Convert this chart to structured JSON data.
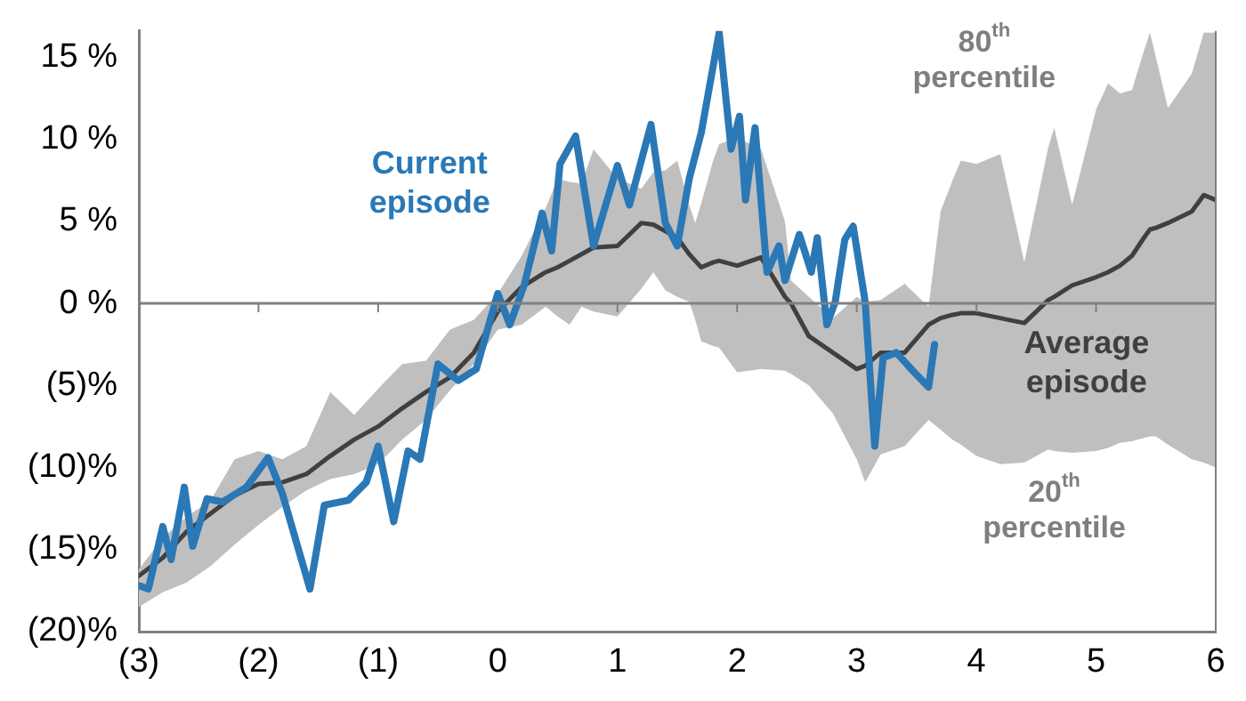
{
  "chart_data": {
    "type": "line",
    "xlim": [
      -3,
      6
    ],
    "xticks": [
      {
        "value": -3,
        "label": "(3)"
      },
      {
        "value": -2,
        "label": "(2)"
      },
      {
        "value": -1,
        "label": "(1)"
      },
      0,
      1,
      2,
      3,
      4,
      5,
      6
    ],
    "ylim": [
      -20,
      16.6
    ],
    "yticks": [
      {
        "value": -20,
        "label": "(20)%"
      },
      {
        "value": -15,
        "label": "(15)%"
      },
      {
        "value": -10,
        "label": "(10)%"
      },
      {
        "value": -5,
        "label": "(5)%"
      },
      {
        "value": 0,
        "label": "0 %"
      },
      {
        "value": 5,
        "label": "5 %"
      },
      {
        "value": 10,
        "label": "10 %"
      },
      {
        "value": 15,
        "label": "15 %"
      }
    ],
    "grid": false,
    "legend": false,
    "marker": "none",
    "line_style": "solid",
    "ref_lines": [
      {
        "axis": "y",
        "value": 0,
        "color": "#808080"
      }
    ],
    "annotations": [
      "80$^{th}$ percentile",
      "20$^{th}$ percentile"
    ],
    "series": [
      {
        "name": "Average episode",
        "color": "#404040",
        "x": [
          -3,
          -2.8,
          -2.6,
          -2.4,
          -2.2,
          -2,
          -1.8,
          -1.6,
          -1.4,
          -1.2,
          -1,
          -0.8,
          -0.6,
          -0.4,
          -0.2,
          0,
          0.2,
          0.4,
          0.5,
          0.6,
          0.7,
          0.8,
          1,
          1.2,
          1.3,
          1.4,
          1.5,
          1.6,
          1.65,
          1.7,
          1.8,
          1.85,
          2,
          2.2,
          2.4,
          2.45,
          2.6,
          2.8,
          3,
          3.07,
          3.2,
          3.4,
          3.6,
          3.7,
          3.8,
          3.87,
          4,
          4.2,
          4.4,
          4.6,
          4.65,
          4.8,
          5,
          5.1,
          5.2,
          5.3,
          5.4,
          5.45,
          5.5,
          5.6,
          5.8,
          5.9,
          6
        ],
        "values": [
          -16.6,
          -15.5,
          -13.9,
          -12.8,
          -11.7,
          -11.0,
          -10.9,
          -10.4,
          -9.3,
          -8.3,
          -7.5,
          -6.4,
          -5.4,
          -4.5,
          -3.0,
          -0.5,
          1.0,
          1.9,
          2.2,
          2.6,
          3.0,
          3.4,
          3.5,
          4.9,
          4.8,
          4.4,
          4.0,
          3.0,
          2.6,
          2.2,
          2.5,
          2.6,
          2.3,
          2.8,
          0.4,
          0.0,
          -2.0,
          -3.0,
          -4.0,
          -3.8,
          -3.0,
          -3.0,
          -1.3,
          -0.9,
          -0.7,
          -0.6,
          -0.6,
          -0.9,
          -1.2,
          0.2,
          0.4,
          1.1,
          1.6,
          1.9,
          2.3,
          2.9,
          4.0,
          4.5,
          4.6,
          4.9,
          5.6,
          6.6,
          6.3
        ],
        "lower": [
          -18.5,
          -17.6,
          -17.0,
          -16.0,
          -14.7,
          -13.5,
          -12.4,
          -11.4,
          -10.7,
          -10.4,
          -9.8,
          -8.3,
          -7.1,
          -5.3,
          -3.7,
          -1.6,
          -1.3,
          -0.2,
          -0.8,
          -1.3,
          -0.2,
          -0.5,
          -0.8,
          0.9,
          1.9,
          0.8,
          0.4,
          0.1,
          -1.0,
          -2.3,
          -2.6,
          -2.7,
          -4.2,
          -4.0,
          -4.1,
          -4.3,
          -5.0,
          -6.7,
          -9.5,
          -10.9,
          -9.2,
          -8.7,
          -7.1,
          -7.7,
          -8.3,
          -8.6,
          -9.3,
          -9.8,
          -9.7,
          -8.9,
          -9.0,
          -9.1,
          -9.0,
          -8.8,
          -8.5,
          -8.4,
          -8.2,
          -8.1,
          -8.1,
          -8.6,
          -9.5,
          -9.7,
          -10.0
        ],
        "upper": [
          -16.2,
          -14.3,
          -13.0,
          -12.0,
          -9.5,
          -9.0,
          -9.5,
          -8.7,
          -5.4,
          -6.8,
          -5.2,
          -3.7,
          -3.5,
          -1.6,
          -1.0,
          0.6,
          2.9,
          5.8,
          7.6,
          7.4,
          7.3,
          9.4,
          7.6,
          7.0,
          8.0,
          8.1,
          8.7,
          6.0,
          4.9,
          6.1,
          8.7,
          9.7,
          10.1,
          9.4,
          5.0,
          1.4,
          0.4,
          -0.9,
          0.4,
          0.1,
          0.2,
          1.2,
          -0.2,
          5.6,
          7.5,
          8.7,
          8.5,
          9.1,
          2.5,
          9.5,
          10.7,
          6.0,
          11.8,
          13.4,
          12.8,
          13.0,
          15.4,
          16.5,
          15.0,
          11.9,
          14.0,
          16.5,
          16.5
        ]
      },
      {
        "name": "Current episode",
        "color": "#2a78b6",
        "x": [
          -3,
          -2.92,
          -2.8,
          -2.73,
          -2.62,
          -2.55,
          -2.43,
          -2.3,
          -2.1,
          -1.92,
          -1.8,
          -1.57,
          -1.45,
          -1.25,
          -1.1,
          -1.0,
          -0.87,
          -0.75,
          -0.65,
          -0.5,
          -0.33,
          -0.18,
          0,
          0.1,
          0.22,
          0.37,
          0.45,
          0.52,
          0.65,
          0.8,
          1.0,
          1.1,
          1.28,
          1.4,
          1.5,
          1.6,
          1.7,
          1.85,
          1.95,
          2.02,
          2.07,
          2.15,
          2.25,
          2.35,
          2.4,
          2.52,
          2.62,
          2.67,
          2.75,
          2.82,
          2.9,
          2.97,
          3.07,
          3.15,
          3.22,
          3.33,
          3.48,
          3.6,
          3.65
        ],
        "values": [
          -17.2,
          -17.4,
          -13.6,
          -15.6,
          -11.2,
          -14.8,
          -11.9,
          -12.1,
          -11.2,
          -9.4,
          -11.6,
          -17.4,
          -12.3,
          -12.0,
          -10.9,
          -8.7,
          -13.3,
          -9.0,
          -9.5,
          -3.7,
          -4.7,
          -4.0,
          0.6,
          -1.3,
          1.1,
          5.5,
          3.2,
          8.5,
          10.2,
          3.5,
          8.4,
          6.0,
          10.9,
          4.9,
          3.5,
          7.6,
          10.4,
          16.5,
          9.4,
          11.4,
          6.3,
          10.7,
          1.9,
          3.5,
          1.4,
          4.2,
          1.9,
          4.0,
          -1.3,
          0.1,
          3.9,
          4.7,
          0.1,
          -8.7,
          -3.3,
          -3.0,
          -4.2,
          -5.1,
          -2.5
        ]
      }
    ]
  }
}
